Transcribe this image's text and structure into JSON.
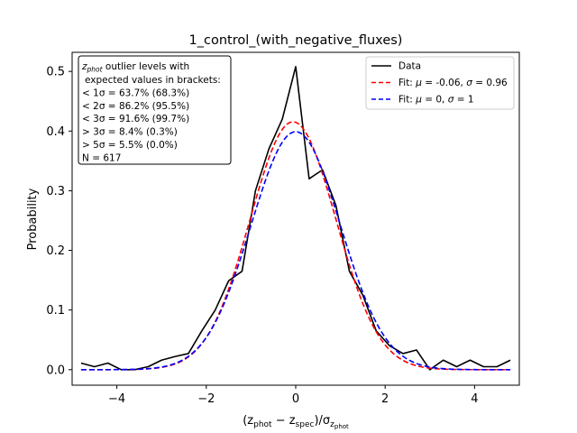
{
  "chart_data": {
    "type": "line",
    "title": "1_control_(with_negative_fluxes)",
    "xlabel_parts": [
      "(z",
      "phot",
      " − z",
      "spec",
      ")/σ",
      "z",
      "phot"
    ],
    "ylabel": "Probability",
    "xlim": [
      -5,
      5
    ],
    "ylim": [
      -0.026,
      0.532
    ],
    "xticks": [
      -4,
      -2,
      0,
      2,
      4
    ],
    "xtick_labels": [
      "−4",
      "−2",
      "0",
      "2",
      "4"
    ],
    "yticks": [
      0.0,
      0.1,
      0.2,
      0.3,
      0.4,
      0.5
    ],
    "ytick_labels": [
      "0.0",
      "0.1",
      "0.2",
      "0.3",
      "0.4",
      "0.5"
    ],
    "legend_position": "top-right",
    "series": [
      {
        "name": "Data",
        "color": "#000000",
        "style": "solid",
        "x": [
          -4.8,
          -4.5,
          -4.2,
          -3.9,
          -3.6,
          -3.3,
          -3.0,
          -2.7,
          -2.4,
          -2.1,
          -1.8,
          -1.5,
          -1.2,
          -0.9,
          -0.6,
          -0.3,
          0.0,
          0.3,
          0.6,
          0.9,
          1.2,
          1.5,
          1.8,
          2.1,
          2.4,
          2.7,
          3.0,
          3.3,
          3.6,
          3.9,
          4.2,
          4.5,
          4.8
        ],
        "y": [
          0.011,
          0.005,
          0.011,
          0.0,
          0.0,
          0.005,
          0.016,
          0.022,
          0.027,
          0.065,
          0.1,
          0.149,
          0.165,
          0.3,
          0.37,
          0.42,
          0.508,
          0.32,
          0.335,
          0.275,
          0.165,
          0.125,
          0.065,
          0.04,
          0.027,
          0.033,
          0.0,
          0.016,
          0.005,
          0.016,
          0.005,
          0.005,
          0.016
        ]
      },
      {
        "name": "Fit: μ = -0.06, σ = 0.96",
        "legend_parts": [
          "Fit: ",
          "μ",
          " = -0.06, ",
          "σ",
          " = 0.96"
        ],
        "color": "#ff0000",
        "style": "dashed",
        "mu": -0.06,
        "sigma": 0.96
      },
      {
        "name": "Fit: μ = 0, σ = 1",
        "legend_parts": [
          "Fit: ",
          "μ",
          " = 0, ",
          "σ",
          " = 1"
        ],
        "color": "#0000ff",
        "style": "dashed",
        "mu": 0,
        "sigma": 1
      }
    ],
    "annotation": {
      "header_parts": [
        "z",
        "phot",
        " outlier levels with"
      ],
      "lines": [
        "expected values in brackets:",
        "< 1σ = 63.7% (68.3%)",
        "< 2σ = 86.2% (95.5%)",
        "< 3σ = 91.6% (99.7%)",
        "> 3σ = 8.4% (0.3%)",
        "> 5σ = 5.5% (0.0%)",
        "N = 617"
      ]
    }
  }
}
